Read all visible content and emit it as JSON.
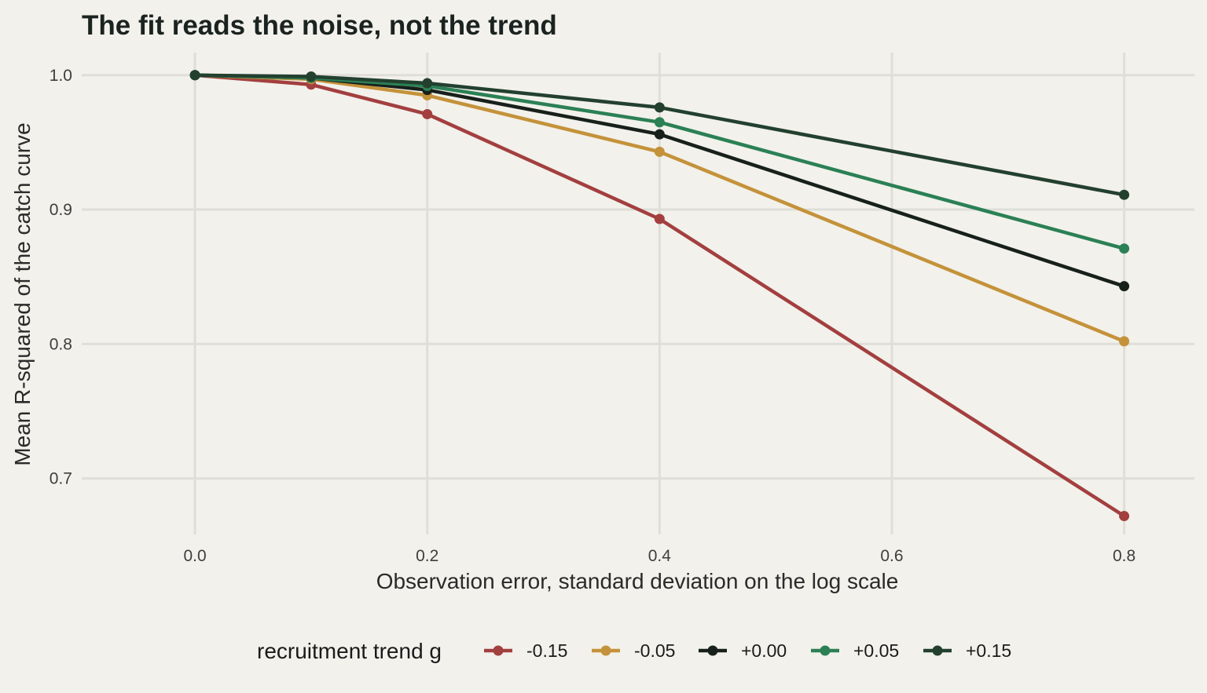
{
  "chart_data": {
    "type": "line",
    "title": "The fit reads the noise, not the trend",
    "xlabel": "Observation error, standard deviation on the log scale",
    "ylabel": "Mean R-squared of the catch curve",
    "xlim": [
      -0.0975,
      0.8605
    ],
    "ylim": [
      0.6583,
      1.0168
    ],
    "x_ticks": [
      0.0,
      0.2,
      0.4,
      0.6,
      0.8
    ],
    "x_tick_labels": [
      "0.0",
      "0.2",
      "0.4",
      "0.6",
      "0.8"
    ],
    "y_ticks": [
      0.7,
      0.8,
      0.9,
      1.0
    ],
    "y_tick_labels": [
      "0.7",
      "0.8",
      "0.9",
      "1.0"
    ],
    "grid": true,
    "legend": {
      "title": "recruitment trend g",
      "position": "bottom"
    },
    "x": [
      0.0,
      0.1,
      0.2,
      0.4,
      0.8
    ],
    "series": [
      {
        "name": "-0.15",
        "color": "#a33f3f",
        "values": [
          1.0,
          0.993,
          0.971,
          0.893,
          0.672
        ]
      },
      {
        "name": "-0.05",
        "color": "#c4923a",
        "values": [
          1.0,
          0.997,
          0.985,
          0.943,
          0.802
        ]
      },
      {
        "name": "+0.00",
        "color": "#17201b",
        "values": [
          1.0,
          0.998,
          0.989,
          0.956,
          0.843
        ]
      },
      {
        "name": "+0.05",
        "color": "#2b8055",
        "values": [
          1.0,
          0.998,
          0.992,
          0.965,
          0.871
        ]
      },
      {
        "name": "+0.15",
        "color": "#23402f",
        "values": [
          1.0,
          0.999,
          0.994,
          0.976,
          0.911
        ]
      }
    ]
  }
}
